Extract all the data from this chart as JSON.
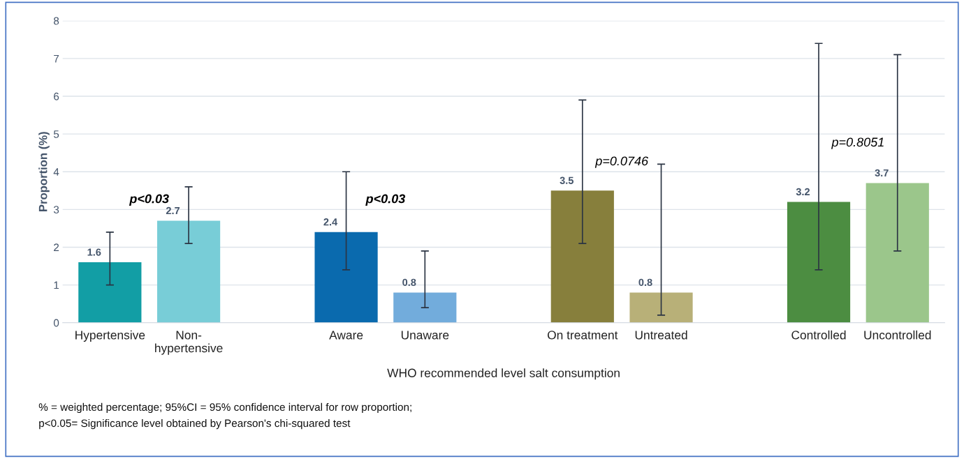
{
  "chart_data": {
    "type": "bar",
    "xlabel": "WHO recommended level salt consumption",
    "ylabel": "Proportion (%)",
    "categories": [
      "Hypertensive",
      "Non-hypertensive",
      null,
      "Aware",
      "Unaware",
      null,
      "On treatment",
      "Untreated",
      null,
      "Controlled",
      "Uncontrolled"
    ],
    "values": [
      1.6,
      2.7,
      null,
      2.4,
      0.8,
      null,
      3.5,
      0.8,
      null,
      3.2,
      3.7
    ],
    "colors": [
      "#129ea5",
      "#78cdd7",
      "#ffffff",
      "#0a6aae",
      "#72acdc",
      "#ffffff",
      "#877f3c",
      "#b8b078",
      "#ffffff",
      "#4c8d41",
      "#9bc68b"
    ],
    "errors": [
      [
        1.0,
        2.4
      ],
      [
        2.1,
        3.6
      ],
      null,
      [
        1.4,
        4.0
      ],
      [
        0.4,
        1.9
      ],
      null,
      [
        2.1,
        5.9
      ],
      [
        0.2,
        4.2
      ],
      null,
      [
        1.4,
        7.4
      ],
      [
        1.9,
        7.1
      ]
    ],
    "data_labels": true,
    "ylim": [
      0,
      8
    ],
    "yticks": [
      0,
      1,
      2,
      3,
      4,
      5,
      6,
      7,
      8
    ],
    "grid": "y",
    "annotations": [
      "p<0.03",
      "p<0.03",
      "p=0.0746",
      "p=0.8051",
      "% = weighted percentage; 95%CI = 95% confidence interval for row proportion;",
      "p<0.05= Significance level obtained by Pearson's chi-squared test"
    ]
  }
}
